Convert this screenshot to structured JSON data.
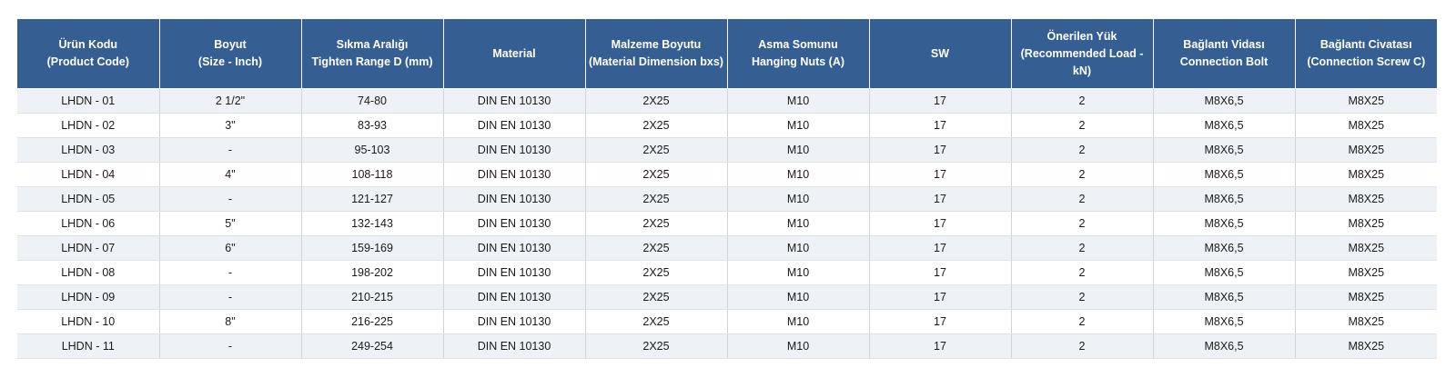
{
  "headers": [
    {
      "line1": "Ürün Kodu",
      "line2": "(Product Code)",
      "line3": ""
    },
    {
      "line1": "Boyut",
      "line2": "(Size - Inch)",
      "line3": ""
    },
    {
      "line1": "Sıkma Aralığı",
      "line2": "Tighten Range D (mm)",
      "line3": ""
    },
    {
      "line1": "Material",
      "line2": "",
      "line3": ""
    },
    {
      "line1": "Malzeme Boyutu",
      "line2": "(Material Dimension bxs)",
      "line3": ""
    },
    {
      "line1": "Asma Somunu",
      "line2": "Hanging Nuts (A)",
      "line3": ""
    },
    {
      "line1": "SW",
      "line2": "",
      "line3": ""
    },
    {
      "line1": "Önerilen Yük",
      "line2": "(Recommended Load -",
      "line3": "kN)"
    },
    {
      "line1": "Bağlantı Vidası",
      "line2": "Connection Bolt",
      "line3": ""
    },
    {
      "line1": "Bağlantı Civatası",
      "line2": "(Connection Screw C)",
      "line3": ""
    }
  ],
  "rows": [
    [
      "LHDN - 01",
      "2 1/2\"",
      "74-80",
      "DIN EN 10130",
      "2X25",
      "M10",
      "17",
      "2",
      "M8X6,5",
      "M8X25"
    ],
    [
      "LHDN - 02",
      "3\"",
      "83-93",
      "DIN EN 10130",
      "2X25",
      "M10",
      "17",
      "2",
      "M8X6,5",
      "M8X25"
    ],
    [
      "LHDN - 03",
      "-",
      "95-103",
      "DIN EN 10130",
      "2X25",
      "M10",
      "17",
      "2",
      "M8X6,5",
      "M8X25"
    ],
    [
      "LHDN - 04",
      "4\"",
      "108-118",
      "DIN EN 10130",
      "2X25",
      "M10",
      "17",
      "2",
      "M8X6,5",
      "M8X25"
    ],
    [
      "LHDN - 05",
      "-",
      "121-127",
      "DIN EN 10130",
      "2X25",
      "M10",
      "17",
      "2",
      "M8X6,5",
      "M8X25"
    ],
    [
      "LHDN - 06",
      "5\"",
      "132-143",
      "DIN EN 10130",
      "2X25",
      "M10",
      "17",
      "2",
      "M8X6,5",
      "M8X25"
    ],
    [
      "LHDN - 07",
      "6\"",
      "159-169",
      "DIN EN 10130",
      "2X25",
      "M10",
      "17",
      "2",
      "M8X6,5",
      "M8X25"
    ],
    [
      "LHDN - 08",
      "-",
      "198-202",
      "DIN EN 10130",
      "2X25",
      "M10",
      "17",
      "2",
      "M8X6,5",
      "M8X25"
    ],
    [
      "LHDN - 09",
      "-",
      "210-215",
      "DIN EN 10130",
      "2X25",
      "M10",
      "17",
      "2",
      "M8X6,5",
      "M8X25"
    ],
    [
      "LHDN - 10",
      "8\"",
      "216-225",
      "DIN EN 10130",
      "2X25",
      "M10",
      "17",
      "2",
      "M8X6,5",
      "M8X25"
    ],
    [
      "LHDN - 11",
      "-",
      "249-254",
      "DIN EN 10130",
      "2X25",
      "M10",
      "17",
      "2",
      "M8X6,5",
      "M8X25"
    ]
  ],
  "colors": {
    "header_bg": "#355f92",
    "header_text": "#ffffff",
    "row_stripe": "#eef2f6",
    "row_plain": "#ffffff"
  }
}
